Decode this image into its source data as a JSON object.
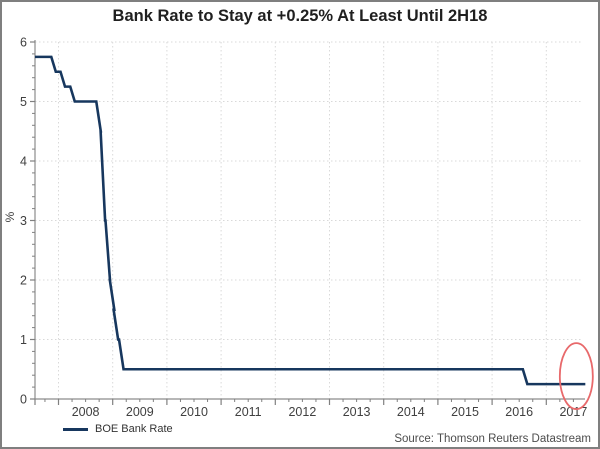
{
  "frame": {
    "title": "Bank Rate to Stay at +0.25% At Least Until 2H18"
  },
  "legend": {
    "label": "BOE Bank Rate"
  },
  "source": {
    "text": "Source: Thomson Reuters Datastream"
  },
  "chart_data": {
    "type": "line",
    "title": "Bank Rate to Stay at +0.25% At Least Until 2H18",
    "xlabel": "",
    "ylabel": "%",
    "ylim": [
      0,
      6
    ],
    "xlim": [
      2007.5,
      2017.75
    ],
    "y_ticks": [
      0,
      1,
      2,
      3,
      4,
      5,
      6
    ],
    "y_minor_step": 0.2,
    "x_tick_years": [
      2008,
      2009,
      2010,
      2011,
      2012,
      2013,
      2014,
      2015,
      2016,
      2017
    ],
    "x_minor_step": 0.25,
    "grid": true,
    "grid_style": "dotted",
    "legend_position": "bottom-left",
    "series": [
      {
        "name": "BOE Bank Rate",
        "color": "#17375e",
        "points": [
          [
            2007.5,
            5.75
          ],
          [
            2007.95,
            5.5
          ],
          [
            2008.12,
            5.25
          ],
          [
            2008.3,
            5.0
          ],
          [
            2008.78,
            4.5
          ],
          [
            2008.86,
            3.0
          ],
          [
            2008.95,
            2.0
          ],
          [
            2009.03,
            1.5
          ],
          [
            2009.1,
            1.0
          ],
          [
            2009.2,
            0.5
          ],
          [
            2016.65,
            0.25
          ]
        ],
        "end_x": 2017.72,
        "end_value": 0.25
      }
    ],
    "annotation": {
      "shape": "ellipse",
      "target": "end-of-series",
      "color": "#e8696b"
    },
    "colors": {
      "line": "#17375e",
      "grid": "#d9d9d9",
      "axis": "#8c8c8c",
      "tick": "#808080",
      "tick_label": "#404040",
      "annotation": "#e8696b"
    }
  }
}
